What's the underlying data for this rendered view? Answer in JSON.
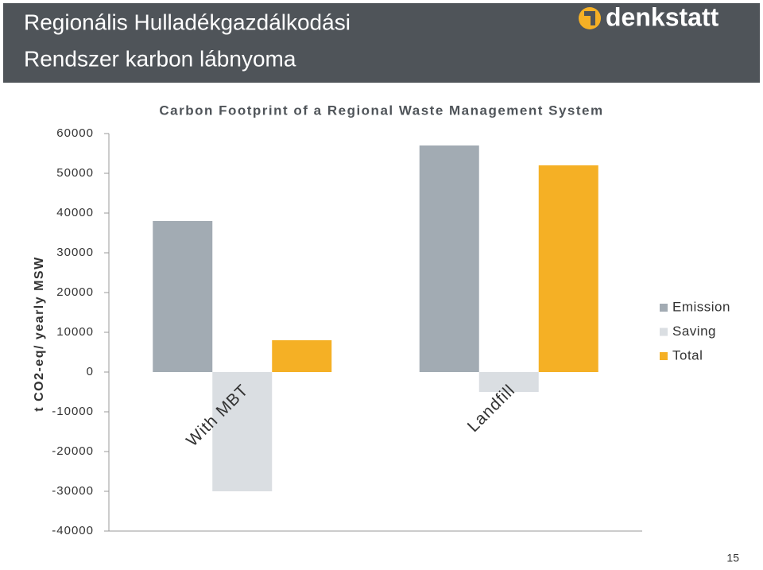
{
  "slide": {
    "title": [
      "Regionális Hulladékgazdálkodási",
      "Rendszer karbon lábnyoma"
    ],
    "logo": "denkstatt",
    "page_number": "15"
  },
  "chart_data": {
    "type": "bar",
    "title": "Carbon Footprint of a Regional Waste Management System",
    "y_label": "t CO2-eq/ yearly MSW",
    "categories": [
      "With MBT",
      "Landfill"
    ],
    "series": [
      {
        "name": "Emission",
        "color": "#a2abb3",
        "values": [
          38000,
          57000
        ]
      },
      {
        "name": "Saving",
        "color": "#dadee2",
        "values": [
          -30000,
          -5000
        ]
      },
      {
        "name": "Total",
        "color": "#f5b025",
        "values": [
          8000,
          52000
        ]
      }
    ],
    "ylim": [
      -40000,
      60000
    ],
    "yticks": [
      -40000,
      -30000,
      -20000,
      -10000,
      0,
      10000,
      20000,
      30000,
      40000,
      50000,
      60000
    ],
    "grid": false,
    "legend": "right"
  }
}
